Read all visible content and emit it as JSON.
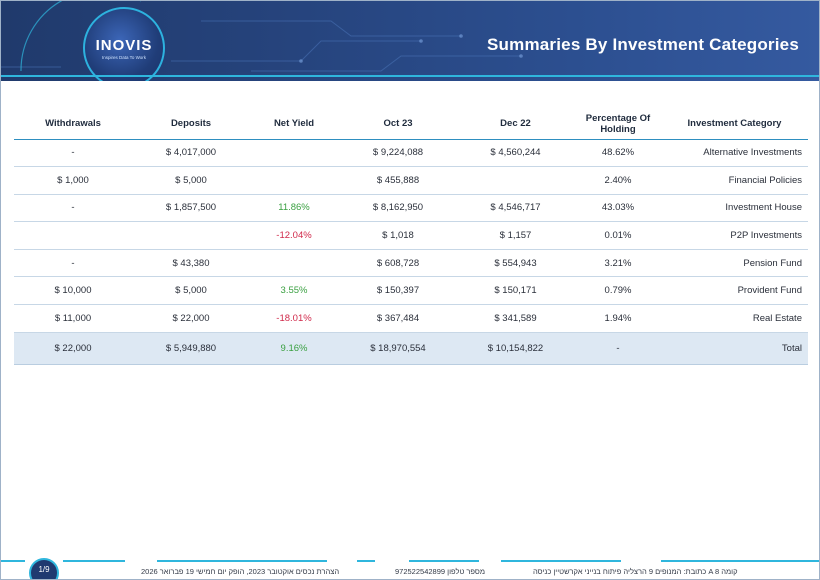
{
  "header": {
    "title": "Summaries By Investment Categories",
    "logo_text": "INOVIS",
    "logo_tagline": "Inspires Data To Work"
  },
  "colors": {
    "header_bg": "#25427a",
    "accent": "#2fb6dd",
    "positive": "#3aa041",
    "negative": "#d0294a",
    "total_row_bg": "#dde8f3"
  },
  "table": {
    "headers": {
      "withdrawals": "Withdrawals",
      "deposits": "Deposits",
      "net_yield": "Net Yield",
      "oct23": "Oct 23",
      "dec22": "Dec 22",
      "percentage": "Percentage Of Holding",
      "category": "Investment Category"
    },
    "rows": [
      {
        "withdrawals": "-",
        "deposits": "$ 4,017,000",
        "net_yield": "",
        "oct23": "$ 9,224,088",
        "dec22": "$ 4,560,244",
        "percentage": "48.62%",
        "category": "Alternative Investments"
      },
      {
        "withdrawals": "$ 1,000",
        "deposits": "$ 5,000",
        "net_yield": "",
        "oct23": "$ 455,888",
        "dec22": "",
        "percentage": "2.40%",
        "category": "Financial Policies"
      },
      {
        "withdrawals": "-",
        "deposits": "$ 1,857,500",
        "net_yield": "11.86%",
        "oct23": "$ 8,162,950",
        "dec22": "$ 4,546,717",
        "percentage": "43.03%",
        "category": "Investment House"
      },
      {
        "withdrawals": "",
        "deposits": "",
        "net_yield": "-12.04%",
        "oct23": "$ 1,018",
        "dec22": "$ 1,157",
        "percentage": "0.01%",
        "category": "P2P Investments"
      },
      {
        "withdrawals": "-",
        "deposits": "$ 43,380",
        "net_yield": "",
        "oct23": "$ 608,728",
        "dec22": "$ 554,943",
        "percentage": "3.21%",
        "category": "Pension Fund"
      },
      {
        "withdrawals": "$ 10,000",
        "deposits": "$ 5,000",
        "net_yield": "3.55%",
        "oct23": "$ 150,397",
        "dec22": "$ 150,171",
        "percentage": "0.79%",
        "category": "Provident Fund"
      },
      {
        "withdrawals": "$ 11,000",
        "deposits": "$ 22,000",
        "net_yield": "-18.01%",
        "oct23": "$ 367,484",
        "dec22": "$ 341,589",
        "percentage": "1.94%",
        "category": "Real Estate"
      }
    ],
    "total": {
      "withdrawals": "$ 22,000",
      "deposits": "$ 5,949,880",
      "net_yield": "9.16%",
      "oct23": "$ 18,970,554",
      "dec22": "$ 10,154,822",
      "percentage": "-",
      "category": "Total"
    }
  },
  "footer": {
    "page": "1/9",
    "declaration": "הצהרת נכסים אוקטובר 2023, הופק יום חמישי 19 פברואר 2026",
    "phone": "מספר טלפון 972522542899",
    "address": "כתובת: המנופים 9 הרצליה פיתוח בנייני אקרשטיין כניסה A קומה 8"
  }
}
